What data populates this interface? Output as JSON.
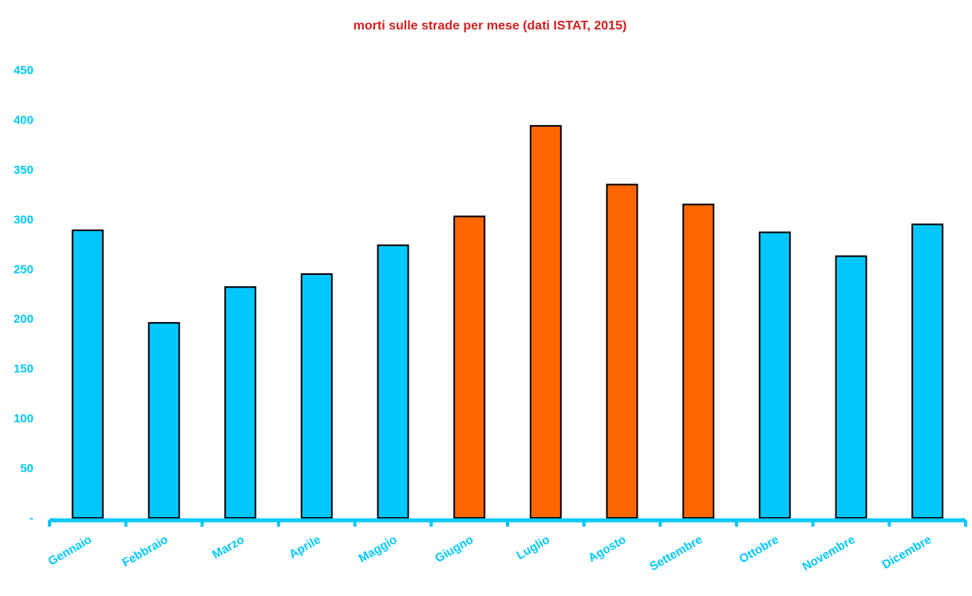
{
  "chart_data": {
    "type": "bar",
    "title": "morti sulle strade per mese (dati ISTAT, 2015)",
    "xlabel": "",
    "ylabel": "",
    "categories": [
      "Gennaio",
      "Febbraio",
      "Marzo",
      "Aprile",
      "Maggio",
      "Giugno",
      "Luglio",
      "Agosto",
      "Settembre",
      "Ottobre",
      "Novembre",
      "Dicembre"
    ],
    "values": [
      289,
      196,
      232,
      245,
      274,
      303,
      394,
      335,
      315,
      287,
      263,
      295
    ],
    "highlighted": [
      false,
      false,
      false,
      false,
      false,
      true,
      true,
      true,
      true,
      false,
      false,
      false
    ],
    "ylim": [
      0,
      450
    ],
    "y_ticks": [
      0,
      50,
      100,
      150,
      200,
      250,
      300,
      350,
      400,
      450
    ],
    "y_tick_labels": [
      "-",
      "50",
      "100",
      "150",
      "200",
      "250",
      "300",
      "350",
      "400",
      "450"
    ],
    "grid": false,
    "legend": "none"
  },
  "colors": {
    "title": "#d41f1f",
    "axis": "#00c8ff",
    "tick_labels": "#00c8ff",
    "bar_default": "#00c8ff",
    "bar_highlight": "#ff6600",
    "bar_outline": "#000000"
  }
}
